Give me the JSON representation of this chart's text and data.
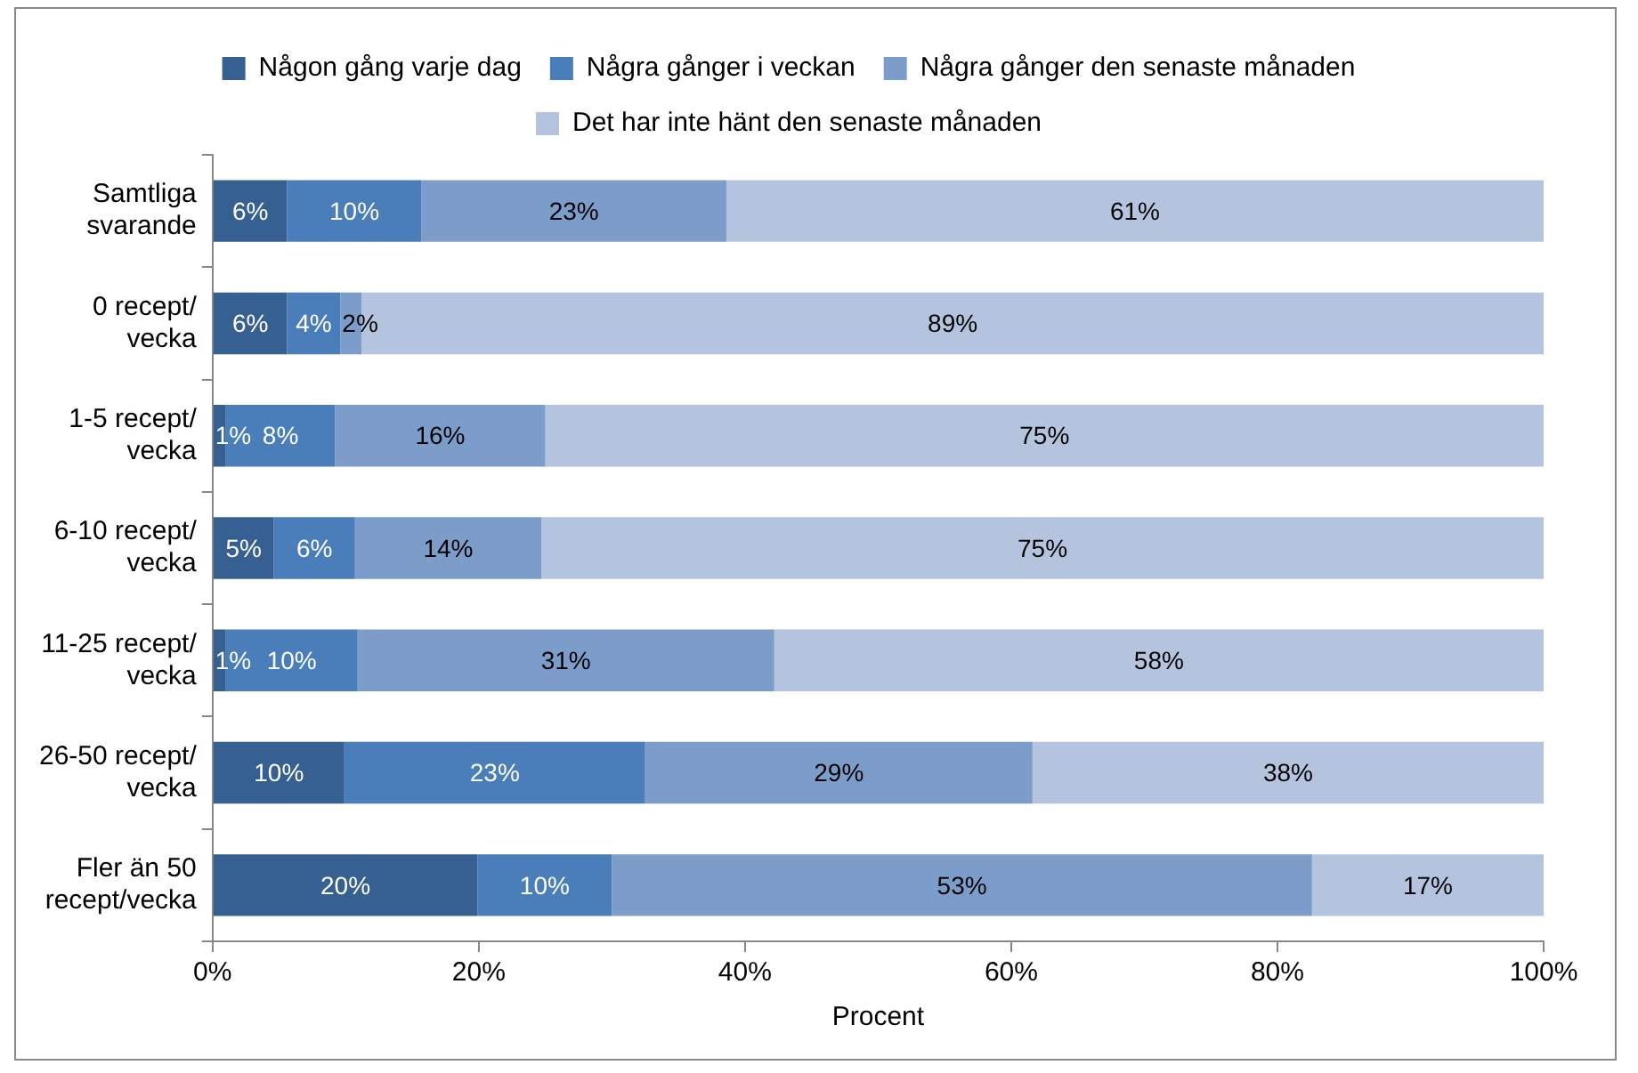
{
  "chart_data": {
    "type": "bar",
    "orientation": "horizontal",
    "stacked": true,
    "xlabel": "Procent",
    "categories": [
      "Samtliga svarande",
      "0 recept/ vecka",
      "1-5 recept/ vecka",
      "6-10 recept/ vecka",
      "11-25 recept/ vecka",
      "26-50 recept/ vecka",
      "Fler än 50 recept/vecka"
    ],
    "series": [
      {
        "name": "Någon gång varje dag",
        "color": "#376092",
        "values": [
          5.6,
          5.6,
          1.0,
          4.6,
          1.0,
          9.9,
          19.9
        ],
        "value_labels": [
          "6%",
          "6%",
          "1%",
          "5%",
          "1%",
          "10%",
          "20%"
        ]
      },
      {
        "name": "Några gånger i veckan",
        "color": "#4a7ebb",
        "values": [
          10.1,
          4.0,
          8.2,
          6.1,
          9.9,
          22.6,
          10.1
        ],
        "value_labels": [
          "10%",
          "4%",
          "8%",
          "6%",
          "10%",
          "23%",
          "10%"
        ]
      },
      {
        "name": "Några gånger den senaste månaden",
        "color": "#7c9dca",
        "values": [
          22.9,
          1.6,
          15.8,
          14.0,
          31.3,
          29.1,
          52.6
        ],
        "value_labels": [
          "23%",
          "2%",
          "16%",
          "14%",
          "31%",
          "29%",
          "53%"
        ]
      },
      {
        "name": "Det har inte hänt den senaste månaden",
        "color": "#b4c4df",
        "values": [
          61.4,
          88.8,
          75.0,
          75.3,
          57.8,
          38.4,
          17.4
        ],
        "value_labels": [
          "61%",
          "89%",
          "75%",
          "75%",
          "58%",
          "38%",
          "17%"
        ]
      }
    ],
    "xlim": [
      0,
      100
    ],
    "xticks": [
      {
        "value": 0,
        "label": "0%"
      },
      {
        "value": 20,
        "label": "20%"
      },
      {
        "value": 40,
        "label": "40%"
      },
      {
        "value": 60,
        "label": "60%"
      },
      {
        "value": 80,
        "label": "80%"
      },
      {
        "value": 100,
        "label": "100%"
      }
    ],
    "grid": false,
    "legend": "top"
  }
}
